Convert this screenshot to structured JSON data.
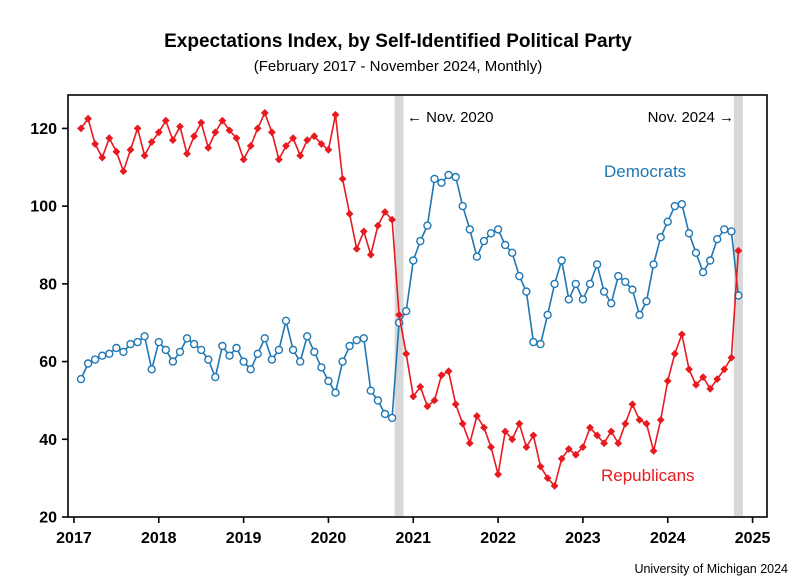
{
  "header": {
    "title": "Expectations Index, by Self-Identified Political Party",
    "subtitle": "(February 2017 - November 2024, Monthly)"
  },
  "annotations": {
    "nov2020": "← Nov. 2020",
    "nov2024": "Nov. 2024 →"
  },
  "series_labels": {
    "democrats": "Democrats",
    "republicans": "Republicans"
  },
  "footer": {
    "credit": "University of Michigan 2024"
  },
  "colors": {
    "democrats": "#1f77b4",
    "republicans": "#e8191f",
    "band": "#d8d8d8",
    "axis": "#000000"
  },
  "chart_data": {
    "type": "line",
    "title": "Expectations Index, by Self-Identified Political Party",
    "subtitle": "(February 2017 - November 2024, Monthly)",
    "x_unit": "decimal_year",
    "frequency": "monthly",
    "x_start": {
      "year": 2017,
      "month": 2
    },
    "x_ticks": [
      2017,
      2018,
      2019,
      2020,
      2021,
      2022,
      2023,
      2024,
      2025
    ],
    "y_ticks": [
      20,
      40,
      60,
      80,
      100,
      120
    ],
    "xlim": [
      2016.93,
      2025.17
    ],
    "ylim": [
      20,
      128.6
    ],
    "grid": false,
    "legend": "inline-labels",
    "event_bands": [
      {
        "label": "Nov. 2020",
        "x": 2020.833
      },
      {
        "label": "Nov. 2024",
        "x": 2024.833
      }
    ],
    "series": [
      {
        "name": "Democrats",
        "color": "#1f77b4",
        "marker": "circle-open",
        "values": [
          55.5,
          59.5,
          60.5,
          61.5,
          62,
          63.5,
          62.5,
          64.5,
          65,
          66.5,
          58,
          65,
          63,
          60,
          62.5,
          66,
          64.5,
          63,
          60.5,
          56,
          64,
          61.5,
          63.5,
          60,
          58,
          62,
          66,
          60.5,
          63,
          70.5,
          63,
          60,
          66.5,
          62.5,
          58.5,
          55,
          52,
          60,
          64,
          65.5,
          66,
          52.5,
          50,
          46.5,
          45.5,
          70,
          73,
          86,
          91,
          95,
          107,
          106,
          108,
          107.5,
          100,
          94,
          87,
          91,
          93,
          94,
          90,
          88,
          82,
          78,
          65,
          64.5,
          72,
          80,
          86,
          76,
          80,
          76,
          80,
          85,
          78,
          75,
          82,
          80.5,
          78.5,
          72,
          75.5,
          85,
          92,
          96,
          100,
          100.5,
          93,
          88,
          83,
          86,
          91.5,
          94,
          93.5,
          77
        ]
      },
      {
        "name": "Republicans",
        "color": "#e8191f",
        "marker": "diamond-filled",
        "values": [
          120,
          122.5,
          116,
          112.5,
          117.5,
          114,
          109,
          114.5,
          120,
          113,
          116.5,
          119,
          122,
          117,
          120.5,
          113.5,
          118,
          121.5,
          115,
          119,
          122,
          119.5,
          117.5,
          112,
          115.5,
          120,
          124,
          119,
          112,
          115.5,
          117.5,
          113,
          117,
          118,
          116,
          114.5,
          123.5,
          107,
          98,
          89,
          93.5,
          87.5,
          95,
          98.5,
          96.5,
          72,
          62,
          51,
          53.5,
          48.5,
          50,
          56.5,
          57.5,
          49,
          44,
          39,
          46,
          43,
          38,
          31,
          42,
          40,
          44,
          38,
          41,
          33,
          30,
          28,
          35,
          37.5,
          36,
          38,
          43,
          41,
          39,
          42,
          39,
          44,
          49,
          45,
          44,
          37,
          45,
          55,
          62,
          67,
          58,
          54,
          56,
          53,
          55.5,
          58,
          61,
          88.5
        ]
      }
    ]
  }
}
